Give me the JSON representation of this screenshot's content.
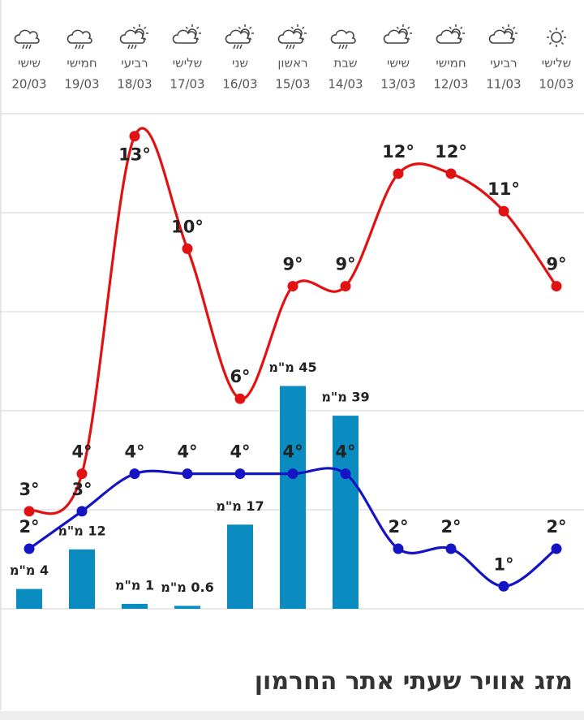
{
  "chart_data": {
    "type": "line",
    "title": "מזג אוויר שעתי אתר החרמון",
    "categories": [
      "20/03",
      "19/03",
      "18/03",
      "17/03",
      "16/03",
      "15/03",
      "14/03",
      "13/03",
      "12/03",
      "11/03",
      "10/03"
    ],
    "days": [
      "שישי",
      "חמישי",
      "רביעי",
      "שלישי",
      "שני",
      "ראשון",
      "שבת",
      "שישי",
      "חמישי",
      "רביעי",
      "שלישי"
    ],
    "ylim": [
      0.4,
      13.6
    ],
    "y2lim": [
      0,
      100
    ],
    "series": [
      {
        "name": "max",
        "type": "line",
        "color": "#e01212",
        "values": [
          3,
          4,
          13,
          10,
          6,
          9,
          9,
          12,
          12,
          11,
          9
        ],
        "value_labels": [
          "3°",
          "4°",
          "13°",
          "10°",
          "6°",
          "9°",
          "9°",
          "12°",
          "12°",
          "11°",
          "9°"
        ]
      },
      {
        "name": "min",
        "type": "line",
        "color": "#1414c4",
        "values": [
          2,
          3,
          4,
          4,
          4,
          4,
          4,
          2,
          2,
          1,
          2
        ],
        "value_labels": [
          "2°",
          "3°",
          "4°",
          "4°",
          "4°",
          "4°",
          "4°",
          "2°",
          "2°",
          "1°",
          "2°"
        ]
      },
      {
        "name": "precip",
        "type": "bar",
        "axis": "y2",
        "color": "#0b8cc0",
        "values": [
          4,
          12,
          1,
          0.6,
          17,
          45,
          39,
          null,
          null,
          null,
          null
        ],
        "value_labels": [
          "4 מ\"מ",
          "12 מ\"מ",
          "1 מ\"מ",
          "0.6 מ\"מ",
          "17 מ\"מ",
          "45 מ\"מ",
          "39 מ\"מ",
          null,
          null,
          null,
          null
        ]
      }
    ]
  }
}
